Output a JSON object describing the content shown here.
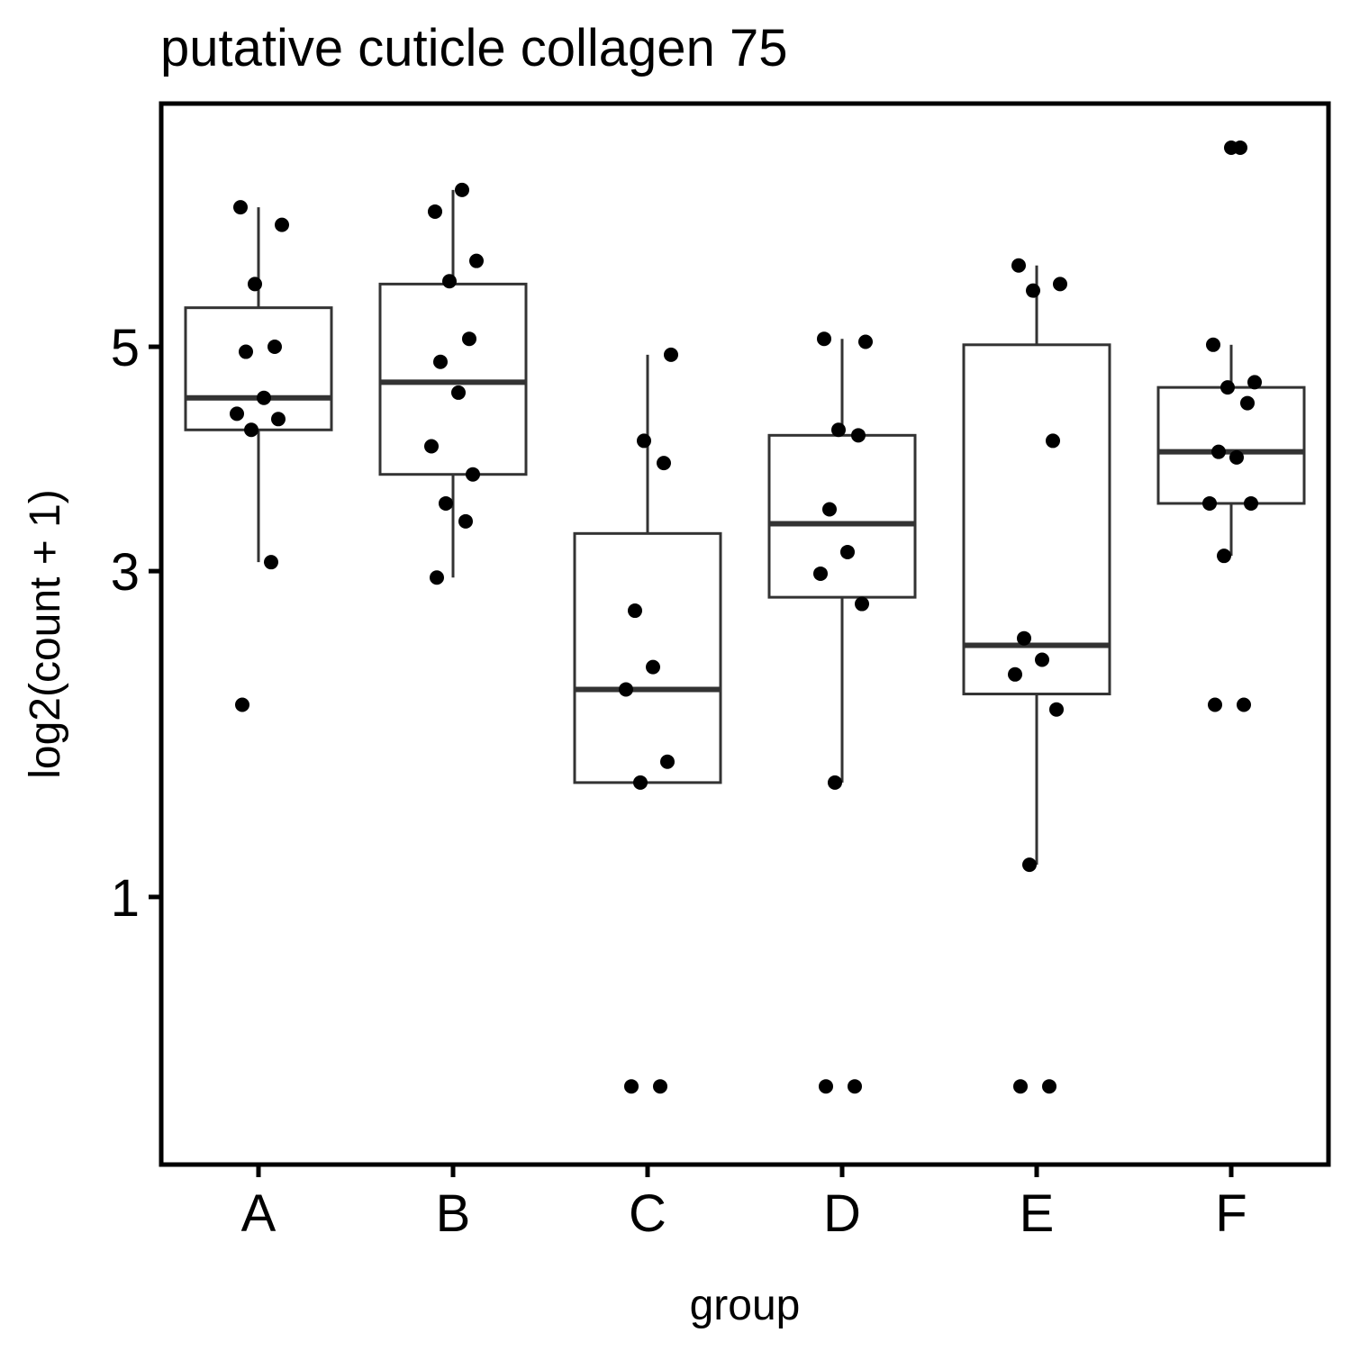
{
  "chart_data": {
    "type": "box",
    "title": "putative cuticle collagen 75",
    "xlabel": "group",
    "ylabel": "log2(count + 1)",
    "y_scale": "sqrt",
    "ylim": [
      0.25,
      7.2
    ],
    "yticks": [
      1,
      3,
      5
    ],
    "grid": false,
    "categories": [
      "A",
      "B",
      "C",
      "D",
      "E",
      "F"
    ],
    "colors": {
      "box": "#333333",
      "point": "#000000",
      "frame": "#000000"
    },
    "boxes": [
      {
        "group": "A",
        "whisker_low": 3.07,
        "q1": 4.2,
        "median": 4.5,
        "q3": 5.4,
        "whisker_high": 6.5
      },
      {
        "group": "B",
        "whisker_low": 2.95,
        "q1": 3.8,
        "median": 4.65,
        "q3": 5.65,
        "whisker_high": 6.7
      },
      {
        "group": "C",
        "whisker_low": 1.58,
        "q1": 1.58,
        "median": 2.15,
        "q3": 3.3,
        "whisker_high": 4.92
      },
      {
        "group": "D",
        "whisker_low": 1.58,
        "q1": 2.8,
        "median": 3.38,
        "q3": 4.15,
        "whisker_high": 5.08
      },
      {
        "group": "E",
        "whisker_low": 1.15,
        "q1": 2.12,
        "median": 2.45,
        "q3": 5.02,
        "whisker_high": 5.85
      },
      {
        "group": "F",
        "whisker_low": 3.12,
        "q1": 3.55,
        "median": 4.0,
        "q3": 4.6,
        "whisker_high": 5.02
      }
    ],
    "points": [
      {
        "group": "A",
        "values": [
          2.05,
          3.07,
          4.2,
          4.3,
          4.35,
          4.5,
          4.95,
          5.0,
          5.65,
          6.3,
          6.5
        ]
      },
      {
        "group": "B",
        "values": [
          2.95,
          3.4,
          3.55,
          3.8,
          4.05,
          4.55,
          4.85,
          5.08,
          5.68,
          5.9,
          6.45,
          6.7
        ]
      },
      {
        "group": "C",
        "values": [
          0.33,
          0.33,
          1.58,
          1.7,
          2.15,
          2.3,
          2.7,
          3.9,
          4.1,
          4.92
        ]
      },
      {
        "group": "D",
        "values": [
          0.33,
          0.33,
          1.58,
          2.75,
          2.98,
          3.15,
          3.5,
          4.15,
          4.2,
          5.05,
          5.08
        ]
      },
      {
        "group": "E",
        "values": [
          0.33,
          0.33,
          1.15,
          2.02,
          2.25,
          2.35,
          2.5,
          4.1,
          5.58,
          5.65,
          5.85
        ]
      },
      {
        "group": "F",
        "values": [
          2.05,
          2.05,
          3.12,
          3.55,
          3.55,
          3.95,
          4.0,
          4.45,
          4.6,
          4.65,
          5.02,
          7.2,
          7.2
        ]
      }
    ]
  }
}
